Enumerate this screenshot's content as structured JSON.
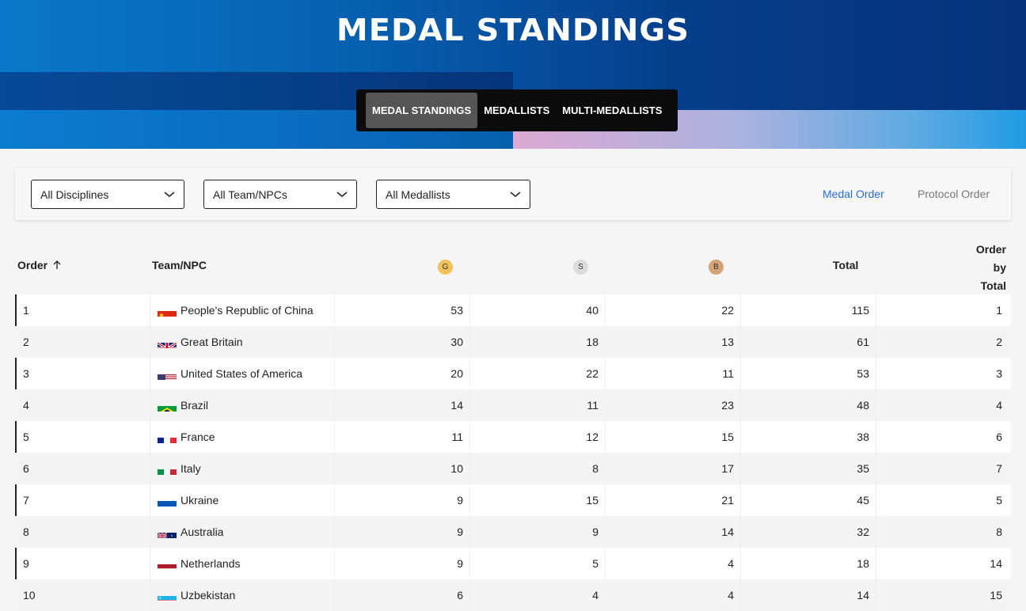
{
  "header": {
    "title": "MEDAL STANDINGS",
    "tabs": [
      {
        "label": "MEDAL STANDINGS",
        "active": true
      },
      {
        "label": "MEDALLISTS",
        "active": false
      },
      {
        "label": "MULTI-MEDALLISTS",
        "active": false
      }
    ]
  },
  "filters": {
    "disciplines": "All Disciplines",
    "teams": "All Team/NPCs",
    "medallists": "All Medallists",
    "medal_order": "Medal Order",
    "protocol_order": "Protocol Order"
  },
  "table": {
    "headers": {
      "order": "Order",
      "team": "Team/NPC",
      "gold": "G",
      "silver": "S",
      "bronze": "B",
      "total": "Total",
      "order_by_total_1": "Order",
      "order_by_total_2": "by",
      "order_by_total_3": "Total"
    },
    "rows": [
      {
        "order": "1",
        "team": "People's Republic of China",
        "flag": "china",
        "gold": "53",
        "silver": "40",
        "bronze": "22",
        "total": "115",
        "obt": "1"
      },
      {
        "order": "2",
        "team": "Great Britain",
        "flag": "gb",
        "gold": "30",
        "silver": "18",
        "bronze": "13",
        "total": "61",
        "obt": "2"
      },
      {
        "order": "3",
        "team": "United States of America",
        "flag": "usa",
        "gold": "20",
        "silver": "22",
        "bronze": "11",
        "total": "53",
        "obt": "3"
      },
      {
        "order": "4",
        "team": "Brazil",
        "flag": "brazil",
        "gold": "14",
        "silver": "11",
        "bronze": "23",
        "total": "48",
        "obt": "4"
      },
      {
        "order": "5",
        "team": "France",
        "flag": "france",
        "gold": "11",
        "silver": "12",
        "bronze": "15",
        "total": "38",
        "obt": "6"
      },
      {
        "order": "6",
        "team": "Italy",
        "flag": "italy",
        "gold": "10",
        "silver": "8",
        "bronze": "17",
        "total": "35",
        "obt": "7"
      },
      {
        "order": "7",
        "team": "Ukraine",
        "flag": "ukraine",
        "gold": "9",
        "silver": "15",
        "bronze": "21",
        "total": "45",
        "obt": "5"
      },
      {
        "order": "8",
        "team": "Australia",
        "flag": "australia",
        "gold": "9",
        "silver": "9",
        "bronze": "14",
        "total": "32",
        "obt": "8"
      },
      {
        "order": "9",
        "team": "Netherlands",
        "flag": "netherlands",
        "gold": "9",
        "silver": "5",
        "bronze": "4",
        "total": "18",
        "obt": "14"
      },
      {
        "order": "10",
        "team": "Uzbekistan",
        "flag": "uzbekistan",
        "gold": "6",
        "silver": "4",
        "bronze": "4",
        "total": "14",
        "obt": "15"
      }
    ]
  }
}
